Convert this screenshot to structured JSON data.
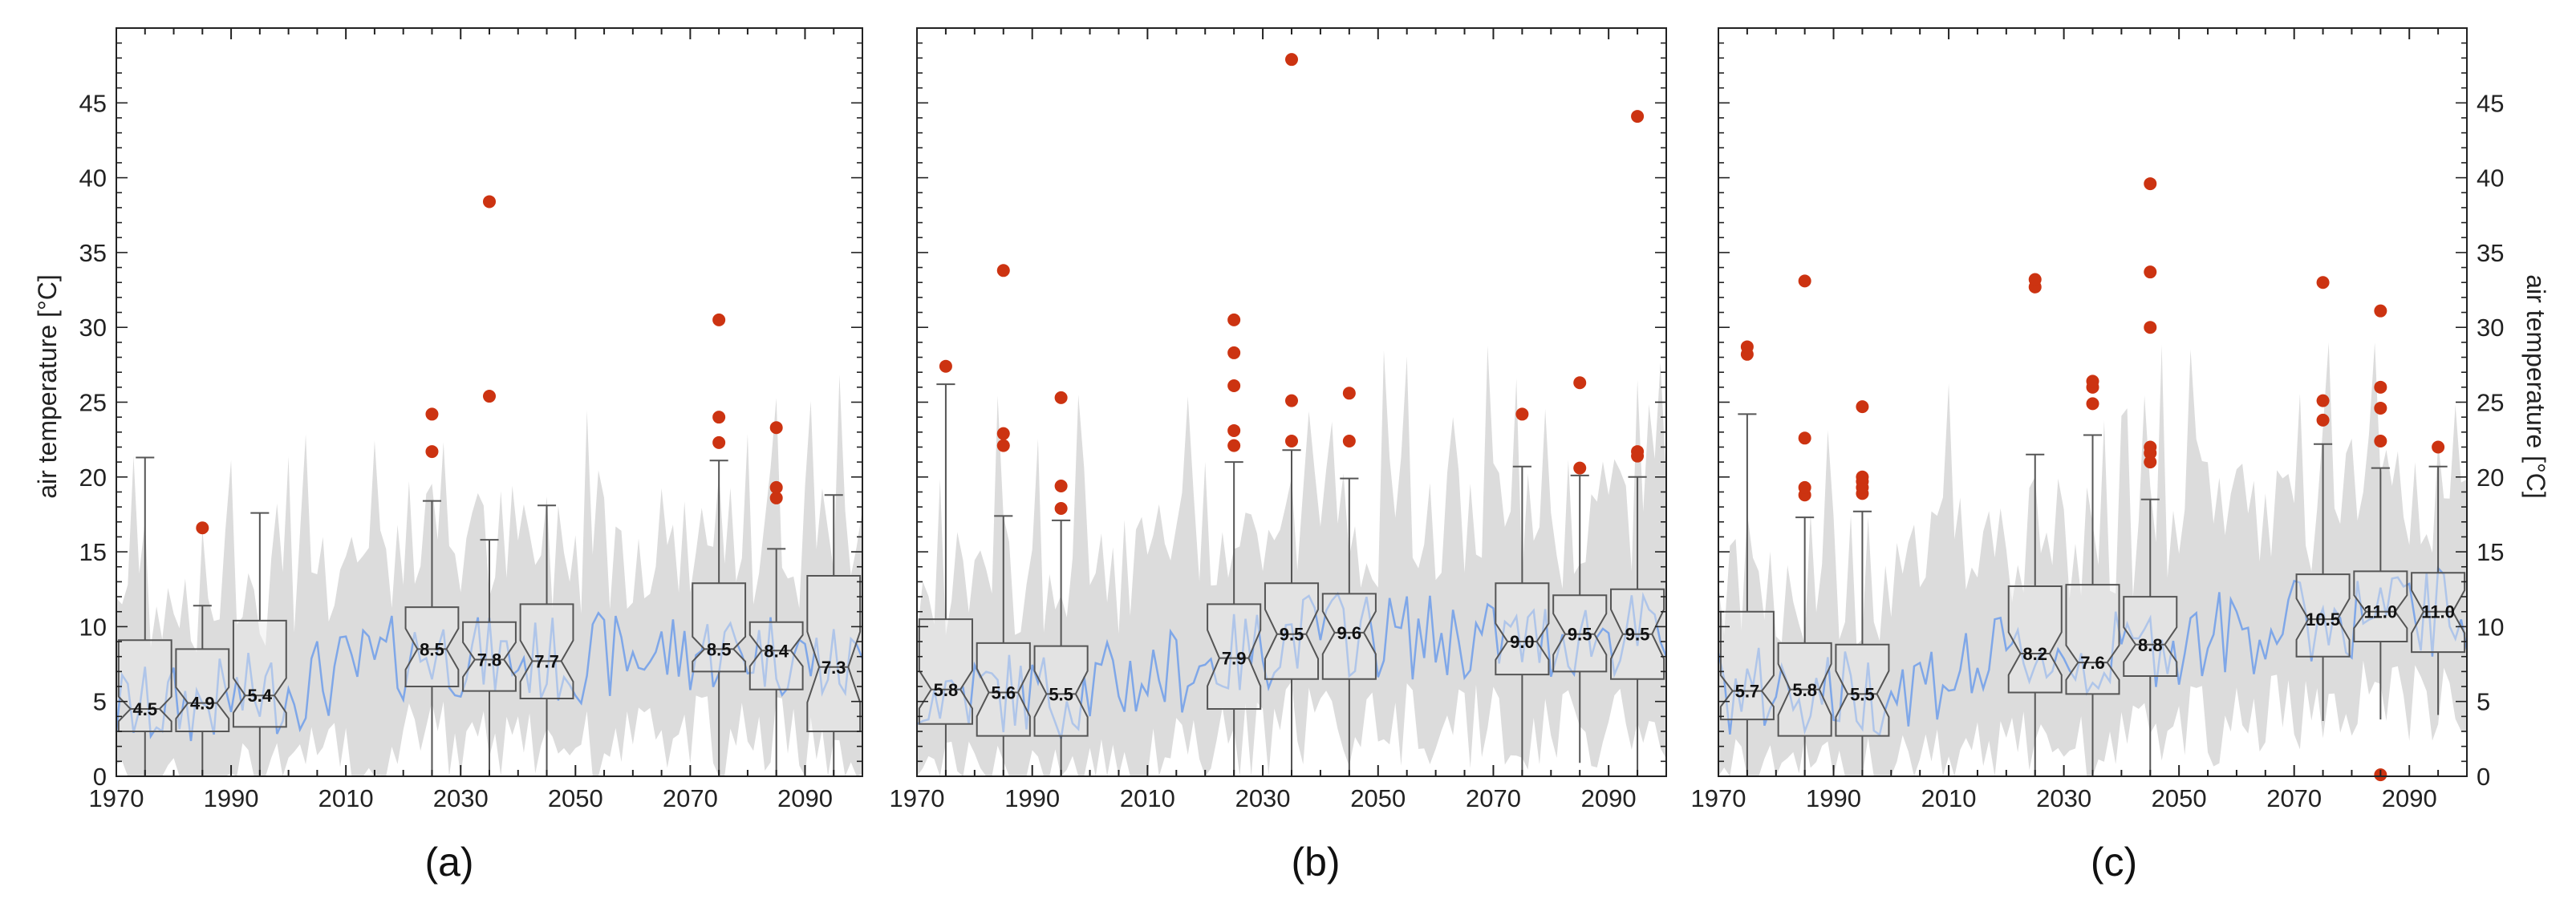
{
  "chart_data": [
    {
      "panel": "(a)",
      "type": "boxplot_with_timeseries",
      "xlim": [
        1970,
        2100
      ],
      "ylim": [
        0,
        50
      ],
      "xticks": [
        1970,
        1990,
        2010,
        2030,
        2050,
        2070,
        2090
      ],
      "yticks": [
        0,
        5,
        10,
        15,
        20,
        25,
        30,
        35,
        40,
        45
      ],
      "ylabel": "air temperature [°C]",
      "y_axis_side": "left",
      "boxes": [
        {
          "center": 1975,
          "min": 0,
          "q1": 3,
          "median": 4.5,
          "q3": 9.1,
          "max": 21.3,
          "label": "4.5",
          "outliers": []
        },
        {
          "center": 1985,
          "min": 0,
          "q1": 3,
          "median": 4.9,
          "q3": 8.5,
          "max": 11.4,
          "label": "4.9",
          "outliers": [
            16.6
          ]
        },
        {
          "center": 1995,
          "min": 0,
          "q1": 3.3,
          "median": 5.4,
          "q3": 10.4,
          "max": 17.6,
          "label": "5.4",
          "outliers": []
        },
        {
          "center": 2025,
          "min": 0,
          "q1": 6,
          "median": 8.5,
          "q3": 11.3,
          "max": 18.4,
          "label": "8.5",
          "outliers": [
            21.7,
            24.2
          ]
        },
        {
          "center": 2035,
          "min": 0,
          "q1": 5.7,
          "median": 7.8,
          "q3": 10.3,
          "max": 15.8,
          "label": "7.8",
          "outliers": [
            25.4,
            38.4
          ]
        },
        {
          "center": 2045,
          "min": 0,
          "q1": 5.2,
          "median": 7.7,
          "q3": 11.5,
          "max": 18.1,
          "label": "7.7",
          "outliers": []
        },
        {
          "center": 2075,
          "min": 0,
          "q1": 7,
          "median": 8.5,
          "q3": 12.9,
          "max": 21.1,
          "label": "8.5",
          "outliers": [
            22.3,
            24,
            30.5
          ]
        },
        {
          "center": 2085,
          "min": 0,
          "q1": 5.8,
          "median": 8.4,
          "q3": 10.3,
          "max": 15.2,
          "label": "8.4",
          "outliers": [
            18.6,
            19.3,
            23.3
          ]
        },
        {
          "center": 2095,
          "min": 0,
          "q1": 3,
          "median": 7.3,
          "q3": 13.4,
          "max": 18.8,
          "label": "7.3",
          "outliers": []
        }
      ]
    },
    {
      "panel": "(b)",
      "type": "boxplot_with_timeseries",
      "xlim": [
        1970,
        2100
      ],
      "ylim": [
        0,
        50
      ],
      "xticks": [
        1970,
        1990,
        2010,
        2030,
        2050,
        2070,
        2090
      ],
      "yticks": [
        0,
        5,
        10,
        15,
        20,
        25,
        30,
        35,
        40,
        45
      ],
      "ylabel": "",
      "y_axis_side": "none",
      "boxes": [
        {
          "center": 1975,
          "min": 0,
          "q1": 3.5,
          "median": 5.8,
          "q3": 10.5,
          "max": 26.2,
          "label": "5.8",
          "outliers": [
            27.4
          ]
        },
        {
          "center": 1985,
          "min": 0,
          "q1": 2.7,
          "median": 5.6,
          "q3": 8.9,
          "max": 17.4,
          "label": "5.6",
          "outliers": [
            22.1,
            22.9,
            33.8
          ]
        },
        {
          "center": 1995,
          "min": 0,
          "q1": 2.7,
          "median": 5.5,
          "q3": 8.7,
          "max": 17.1,
          "label": "5.5",
          "outliers": [
            17.9,
            19.4,
            25.3
          ]
        },
        {
          "center": 2025,
          "min": 0,
          "q1": 4.5,
          "median": 7.9,
          "q3": 11.5,
          "max": 21,
          "label": "7.9",
          "outliers": [
            22.1,
            23.1,
            26.1,
            28.3,
            30.5
          ]
        },
        {
          "center": 2035,
          "min": 0,
          "q1": 6.5,
          "median": 9.5,
          "q3": 12.9,
          "max": 21.8,
          "label": "9.5",
          "outliers": [
            22.4,
            25.1,
            47.9
          ]
        },
        {
          "center": 2045,
          "min": 0,
          "q1": 6.5,
          "median": 9.6,
          "q3": 12.2,
          "max": 19.9,
          "label": "9.6",
          "outliers": [
            22.4,
            25.6
          ]
        },
        {
          "center": 2075,
          "min": 0,
          "q1": 6.8,
          "median": 9,
          "q3": 12.9,
          "max": 20.7,
          "label": "9.0",
          "outliers": [
            24.2
          ]
        },
        {
          "center": 2085,
          "min": 0.9,
          "q1": 7,
          "median": 9.5,
          "q3": 12.1,
          "max": 20.1,
          "label": "9.5",
          "outliers": [
            20.6,
            26.3
          ]
        },
        {
          "center": 2095,
          "min": 0,
          "q1": 6.5,
          "median": 9.5,
          "q3": 12.5,
          "max": 20,
          "label": "9.5",
          "outliers": [
            21.4,
            21.7,
            44.1
          ]
        }
      ]
    },
    {
      "panel": "(c)",
      "type": "boxplot_with_timeseries",
      "xlim": [
        1970,
        2100
      ],
      "ylim": [
        0,
        50
      ],
      "xticks": [
        1970,
        1990,
        2010,
        2030,
        2050,
        2070,
        2090
      ],
      "yticks": [
        0,
        5,
        10,
        15,
        20,
        25,
        30,
        35,
        40,
        45
      ],
      "ylabel": "air temperature [°C]",
      "y_axis_side": "right",
      "boxes": [
        {
          "center": 1975,
          "min": 0,
          "q1": 3.8,
          "median": 5.7,
          "q3": 11,
          "max": 24.2,
          "label": "5.7",
          "outliers": [
            28.2,
            28.7
          ]
        },
        {
          "center": 1985,
          "min": 0,
          "q1": 2.7,
          "median": 5.8,
          "q3": 8.9,
          "max": 17.3,
          "label": "5.8",
          "outliers": [
            18.8,
            19.3,
            22.6,
            33.1
          ]
        },
        {
          "center": 1995,
          "min": 0,
          "q1": 2.7,
          "median": 5.5,
          "q3": 8.8,
          "max": 17.7,
          "label": "5.5",
          "outliers": [
            18.9,
            19.3,
            19.7,
            20,
            24.7
          ]
        },
        {
          "center": 2025,
          "min": 0,
          "q1": 5.6,
          "median": 8.2,
          "q3": 12.7,
          "max": 21.5,
          "label": "8.2",
          "outliers": [
            32.7,
            33.2
          ]
        },
        {
          "center": 2035,
          "min": 0,
          "q1": 5.5,
          "median": 7.6,
          "q3": 12.8,
          "max": 22.8,
          "label": "7.6",
          "outliers": [
            24.9,
            26,
            26.4
          ]
        },
        {
          "center": 2045,
          "min": 0,
          "q1": 6.7,
          "median": 8.8,
          "q3": 12,
          "max": 18.5,
          "label": "8.8",
          "outliers": [
            21,
            21.6,
            22,
            30,
            33.7,
            39.6
          ]
        },
        {
          "center": 2075,
          "min": 3.7,
          "q1": 8,
          "median": 10.5,
          "q3": 13.5,
          "max": 22.2,
          "label": "10.5",
          "outliers": [
            23.8,
            25.1,
            33
          ]
        },
        {
          "center": 2085,
          "min": 3.8,
          "q1": 9,
          "median": 11,
          "q3": 13.7,
          "max": 20.6,
          "label": "11.0",
          "outliers": [
            0.1,
            22.4,
            24.6,
            26,
            31.1
          ]
        },
        {
          "center": 2095,
          "min": 4.1,
          "q1": 8.3,
          "median": 11,
          "q3": 13.6,
          "max": 20.7,
          "label": "11.0",
          "outliers": [
            22
          ]
        }
      ]
    }
  ],
  "colors": {
    "series_line": "#7fa7e8",
    "envelope": "#dcdcdc",
    "outlier": "#cc3311",
    "box_stroke": "#555555",
    "axis": "#222222"
  }
}
